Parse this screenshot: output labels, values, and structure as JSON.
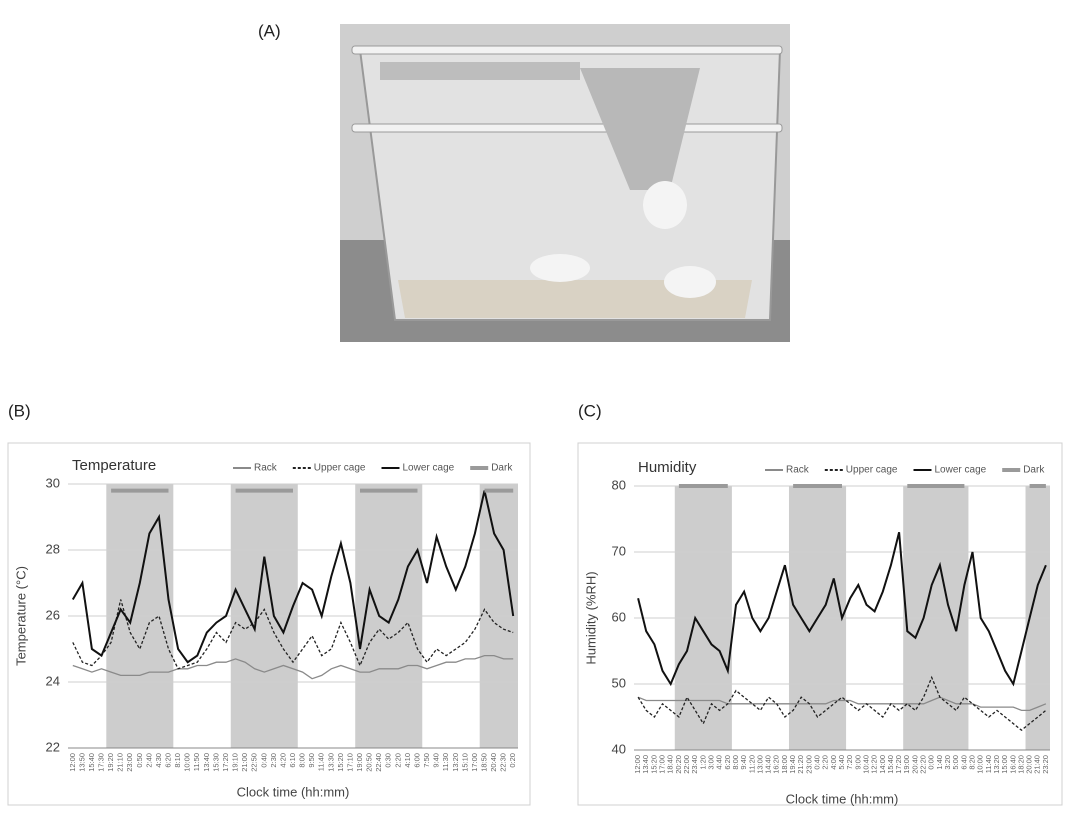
{
  "figure": {
    "labels": [
      "(A)",
      "(B)",
      "(C)"
    ]
  },
  "chart_data": [
    {
      "type": "line",
      "title": "Temperature",
      "y_label": "Temperature (°C)",
      "x_label": "Clock time (hh:mm)",
      "categories": [
        "12:00",
        "13:50",
        "15:40",
        "17:30",
        "19:20",
        "21:10",
        "23:00",
        "0:50",
        "2:40",
        "4:30",
        "6:20",
        "8:10",
        "10:00",
        "11:50",
        "13:40",
        "15:30",
        "17:20",
        "19:10",
        "21:00",
        "22:50",
        "0:40",
        "2:30",
        "4:20",
        "6:10",
        "8:00",
        "9:50",
        "11:40",
        "13:30",
        "15:20",
        "17:10",
        "19:00",
        "20:50",
        "22:40",
        "0:30",
        "2:20",
        "4:10",
        "6:00",
        "7:50",
        "9:40",
        "11:30",
        "13:20",
        "15:10",
        "17:00",
        "18:50",
        "20:40",
        "22:30",
        "0:20"
      ],
      "ylim": [
        22,
        30
      ],
      "yticks": [
        22,
        24,
        26,
        28,
        30
      ],
      "grid": true,
      "legend": "top-right",
      "series": [
        {
          "name": "Rack",
          "color": "#8a8a8a",
          "values": [
            24.5,
            24.4,
            24.3,
            24.4,
            24.3,
            24.2,
            24.2,
            24.2,
            24.3,
            24.3,
            24.3,
            24.4,
            24.4,
            24.5,
            24.5,
            24.6,
            24.6,
            24.7,
            24.6,
            24.4,
            24.3,
            24.4,
            24.5,
            24.4,
            24.3,
            24.1,
            24.2,
            24.4,
            24.5,
            24.4,
            24.3,
            24.3,
            24.4,
            24.4,
            24.4,
            24.5,
            24.5,
            24.4,
            24.5,
            24.6,
            24.6,
            24.7,
            24.7,
            24.8,
            24.8,
            24.7,
            24.7
          ]
        },
        {
          "name": "Upper cage",
          "color": "#222222",
          "linestyle": "dashed",
          "values": [
            25.2,
            24.6,
            24.5,
            24.8,
            25.2,
            26.5,
            25.5,
            25.0,
            25.8,
            26.0,
            25.0,
            24.4,
            24.5,
            24.6,
            25.0,
            25.5,
            25.2,
            25.8,
            25.6,
            25.8,
            26.2,
            25.5,
            25.0,
            24.6,
            25.0,
            25.4,
            24.8,
            25.0,
            25.8,
            25.2,
            24.5,
            25.2,
            25.6,
            25.3,
            25.5,
            25.8,
            25.0,
            24.6,
            25.0,
            24.8,
            25.0,
            25.2,
            25.6,
            26.2,
            25.8,
            25.6,
            25.5
          ]
        },
        {
          "name": "Lower cage",
          "color": "#111111",
          "values": [
            26.5,
            27.0,
            25.0,
            24.8,
            25.5,
            26.2,
            25.8,
            27.0,
            28.5,
            29.0,
            26.5,
            25.0,
            24.6,
            24.8,
            25.5,
            25.8,
            26.0,
            26.8,
            26.2,
            25.6,
            27.8,
            26.0,
            25.5,
            26.3,
            27.0,
            26.8,
            26.0,
            27.2,
            28.2,
            27.0,
            25.0,
            26.8,
            26.0,
            25.8,
            26.5,
            27.5,
            28.0,
            27.0,
            28.4,
            27.5,
            26.8,
            27.5,
            28.5,
            29.8,
            28.5,
            28.0,
            26.0
          ]
        },
        {
          "name": "Dark",
          "color": "#9a9a9a",
          "values": [
            null,
            null,
            null,
            null,
            29.8,
            29.8,
            29.8,
            29.8,
            29.8,
            29.8,
            29.8,
            null,
            null,
            null,
            null,
            null,
            null,
            29.8,
            29.8,
            29.8,
            29.8,
            29.8,
            29.8,
            29.8,
            null,
            null,
            null,
            null,
            null,
            null,
            29.8,
            29.8,
            29.8,
            29.8,
            29.8,
            29.8,
            29.8,
            null,
            null,
            null,
            null,
            null,
            null,
            29.8,
            29.8,
            29.8,
            29.8
          ]
        }
      ]
    },
    {
      "type": "line",
      "title": "Humidity",
      "y_label": "Humidity (%RH)",
      "x_label": "Clock time (hh:mm)",
      "categories": [
        "12:00",
        "13:40",
        "15:20",
        "17:00",
        "18:40",
        "20:20",
        "22:00",
        "23:40",
        "1:20",
        "3:00",
        "4:40",
        "6:20",
        "8:00",
        "9:40",
        "11:20",
        "13:00",
        "14:40",
        "16:20",
        "18:00",
        "19:40",
        "21:20",
        "23:00",
        "0:40",
        "2:20",
        "4:00",
        "5:40",
        "7:20",
        "9:00",
        "10:40",
        "12:20",
        "14:00",
        "15:40",
        "17:20",
        "19:00",
        "20:40",
        "22:20",
        "0:00",
        "1:40",
        "3:20",
        "5:00",
        "6:40",
        "8:20",
        "10:00",
        "11:40",
        "13:20",
        "15:00",
        "16:40",
        "18:20",
        "20:00",
        "21:40",
        "23:20"
      ],
      "ylim": [
        40,
        80
      ],
      "yticks": [
        40,
        50,
        60,
        70,
        80
      ],
      "grid": true,
      "legend": "top-right",
      "series": [
        {
          "name": "Rack",
          "color": "#8a8a8a",
          "values": [
            48,
            47.5,
            47.5,
            47.5,
            47.5,
            47.5,
            47.5,
            47.5,
            47.5,
            47.5,
            47.5,
            47,
            47,
            47,
            47,
            47,
            47,
            47,
            47,
            47,
            47,
            47,
            47,
            47,
            47.5,
            47.5,
            47.5,
            47,
            47,
            47,
            47,
            47,
            47,
            47,
            47,
            47,
            47.5,
            48,
            47.5,
            47,
            47,
            47,
            46.5,
            46.5,
            46.5,
            46.5,
            46.5,
            46,
            46,
            46.5,
            47
          ]
        },
        {
          "name": "Upper cage",
          "color": "#222222",
          "linestyle": "dashed",
          "values": [
            48,
            46,
            45,
            47,
            46,
            45,
            48,
            46,
            44,
            47,
            46,
            47,
            49,
            48,
            47,
            46,
            48,
            47,
            45,
            46,
            48,
            47,
            45,
            46,
            47,
            48,
            47,
            46,
            47,
            46,
            45,
            47,
            46,
            47,
            46,
            48,
            51,
            48,
            47,
            46,
            48,
            47,
            46,
            45,
            46,
            45,
            44,
            43,
            44,
            45,
            46
          ]
        },
        {
          "name": "Lower cage",
          "color": "#111111",
          "values": [
            63,
            58,
            56,
            52,
            50,
            53,
            55,
            60,
            58,
            56,
            55,
            52,
            62,
            64,
            60,
            58,
            60,
            64,
            68,
            62,
            60,
            58,
            60,
            62,
            66,
            60,
            63,
            65,
            62,
            61,
            64,
            68,
            73,
            58,
            57,
            60,
            65,
            68,
            62,
            58,
            65,
            70,
            60,
            58,
            55,
            52,
            50,
            55,
            60,
            65,
            68
          ]
        },
        {
          "name": "Dark",
          "color": "#9a9a9a",
          "values": [
            null,
            null,
            null,
            null,
            null,
            80,
            80,
            80,
            80,
            80,
            80,
            80,
            null,
            null,
            null,
            null,
            null,
            null,
            null,
            80,
            80,
            80,
            80,
            80,
            80,
            80,
            null,
            null,
            null,
            null,
            null,
            null,
            null,
            80,
            80,
            80,
            80,
            80,
            80,
            80,
            80,
            null,
            null,
            null,
            null,
            null,
            null,
            null,
            80,
            80,
            80
          ]
        }
      ]
    }
  ]
}
